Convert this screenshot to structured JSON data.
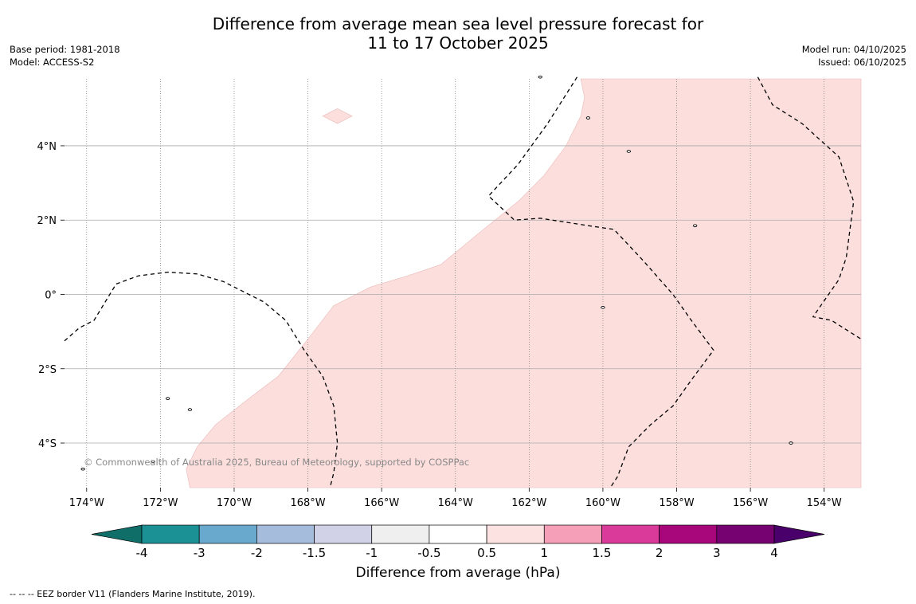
{
  "title_line1": "Difference from average mean sea level pressure forecast for",
  "title_line2": "11 to 17 October 2025",
  "base_period": "Base period: 1981-2018",
  "model": "Model: ACCESS-S2",
  "model_run": "Model run: 04/10/2025",
  "issued": "Issued: 06/10/2025",
  "copyright": "© Commonwealth of Australia 2025, Bureau of Meteorology, supported by COSPPac",
  "colorbar_title": "Difference from average (hPa)",
  "footnote": "--  --  -- EEZ border V11 (Flanders Marine Institute, 2019).",
  "colors": {
    "anomaly_fill": "#fcdedd",
    "gridline": "#aaaaaa",
    "frame_bg": "#ffffff"
  },
  "chart_data": {
    "type": "map",
    "variable": "Difference from average mean sea level pressure (hPa)",
    "lon_range": [
      -174.6,
      -153.0
    ],
    "lat_range": [
      -5.2,
      5.8
    ],
    "lon_ticks": [
      {
        "value": -174,
        "label": "174°W"
      },
      {
        "value": -172,
        "label": "172°W"
      },
      {
        "value": -170,
        "label": "170°W"
      },
      {
        "value": -168,
        "label": "168°W"
      },
      {
        "value": -166,
        "label": "166°W"
      },
      {
        "value": -164,
        "label": "164°W"
      },
      {
        "value": -162,
        "label": "162°W"
      },
      {
        "value": -160,
        "label": "160°W"
      },
      {
        "value": -158,
        "label": "158°W"
      },
      {
        "value": -156,
        "label": "156°W"
      },
      {
        "value": -154,
        "label": "154°W"
      }
    ],
    "lat_ticks": [
      {
        "value": 4,
        "label": "4°N"
      },
      {
        "value": 2,
        "label": "2°N"
      },
      {
        "value": 0,
        "label": "0°"
      },
      {
        "value": -2,
        "label": "2°S"
      },
      {
        "value": -4,
        "label": "4°S"
      }
    ],
    "anomaly_region_0p5_to_1": [
      [
        -171.2,
        -5.2
      ],
      [
        -171.3,
        -4.7
      ],
      [
        -171.0,
        -4.1
      ],
      [
        -170.5,
        -3.5
      ],
      [
        -169.6,
        -2.8
      ],
      [
        -168.8,
        -2.2
      ],
      [
        -168.0,
        -1.2
      ],
      [
        -167.3,
        -0.3
      ],
      [
        -166.3,
        0.2
      ],
      [
        -165.3,
        0.5
      ],
      [
        -164.4,
        0.8
      ],
      [
        -163.3,
        1.7
      ],
      [
        -162.3,
        2.5
      ],
      [
        -161.6,
        3.2
      ],
      [
        -161.0,
        4.0
      ],
      [
        -160.6,
        4.8
      ],
      [
        -160.5,
        5.3
      ],
      [
        -160.6,
        5.8
      ],
      [
        -153.0,
        5.8
      ],
      [
        -153.0,
        -5.2
      ]
    ],
    "small_anomaly_patch": [
      [
        -167.6,
        4.8
      ],
      [
        -167.2,
        4.6
      ],
      [
        -166.8,
        4.8
      ],
      [
        -167.2,
        5.0
      ]
    ],
    "eez_borders": [
      [
        [
          -174.6,
          -1.25
        ],
        [
          -174.2,
          -0.9
        ],
        [
          -173.8,
          -0.7
        ],
        [
          -173.2,
          0.28
        ],
        [
          -172.6,
          0.5
        ],
        [
          -171.8,
          0.6
        ],
        [
          -171.0,
          0.55
        ],
        [
          -170.3,
          0.35
        ],
        [
          -169.8,
          0.1
        ],
        [
          -169.2,
          -0.2
        ],
        [
          -168.6,
          -0.7
        ],
        [
          -168.1,
          -1.5
        ],
        [
          -167.6,
          -2.2
        ],
        [
          -167.3,
          -3.0
        ],
        [
          -167.2,
          -4.0
        ],
        [
          -167.3,
          -4.8
        ],
        [
          -167.4,
          -5.2
        ]
      ],
      [
        [
          -160.7,
          5.85
        ],
        [
          -161.5,
          4.6
        ],
        [
          -162.3,
          3.5
        ],
        [
          -163.1,
          2.65
        ],
        [
          -162.4,
          2.0
        ],
        [
          -161.7,
          2.05
        ],
        [
          -160.4,
          1.85
        ],
        [
          -159.7,
          1.75
        ],
        [
          -158.9,
          0.9
        ],
        [
          -158.1,
          0.0
        ],
        [
          -157.6,
          -0.7
        ],
        [
          -157.0,
          -1.5
        ],
        [
          -157.6,
          -2.3
        ],
        [
          -158.1,
          -3.0
        ],
        [
          -158.7,
          -3.5
        ],
        [
          -159.3,
          -4.1
        ],
        [
          -159.6,
          -4.9
        ],
        [
          -159.8,
          -5.2
        ]
      ],
      [
        [
          -155.8,
          5.85
        ],
        [
          -155.4,
          5.1
        ],
        [
          -154.6,
          4.6
        ],
        [
          -153.6,
          3.7
        ],
        [
          -153.2,
          2.5
        ],
        [
          -153.4,
          1.0
        ],
        [
          -153.6,
          0.4
        ],
        [
          -154.3,
          -0.6
        ],
        [
          -153.8,
          -0.7
        ],
        [
          -153.0,
          -1.2
        ]
      ]
    ],
    "islands": [
      [
        -161.7,
        5.85
      ],
      [
        -160.4,
        4.75
      ],
      [
        -159.3,
        3.85
      ],
      [
        -157.5,
        1.85
      ],
      [
        -160.0,
        -0.35
      ],
      [
        -171.8,
        -2.8
      ],
      [
        -171.2,
        -3.1
      ],
      [
        -172.2,
        -4.5
      ],
      [
        -174.1,
        -4.7
      ],
      [
        -154.9,
        -4.0
      ]
    ],
    "colorbar": {
      "labels": [
        "-4",
        "-3",
        "-2",
        "-1.5",
        "-1",
        "-0.5",
        "0.5",
        "1",
        "1.5",
        "2",
        "3",
        "4"
      ],
      "colors": [
        "#0f6e68",
        "#1c9195",
        "#6aa9ce",
        "#a6bcdc",
        "#d1d2e8",
        "#efefef",
        "#ffffff",
        "#fde2e2",
        "#f69fb8",
        "#da3b9a",
        "#a8077c",
        "#760170",
        "#49006a"
      ],
      "extend": "both"
    }
  }
}
